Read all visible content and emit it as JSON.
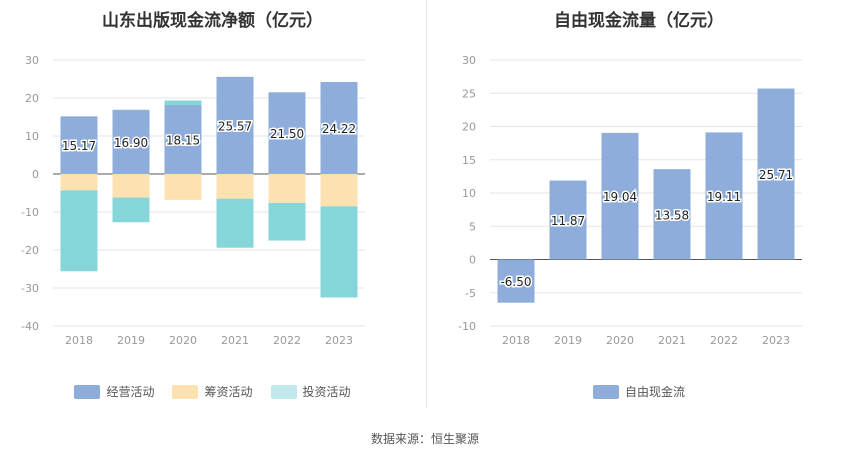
{
  "colors": {
    "operating": "#8eaddb",
    "financing": "#fde1b0",
    "investing": "#85d6d8",
    "fcf": "#8eaddb",
    "grid": "#e6e6e6",
    "axis_text": "#999999"
  },
  "source_text": "数据来源：恒生聚源",
  "chart_data": [
    {
      "type": "bar",
      "stacked": true,
      "title": "山东出版现金流净额（亿元）",
      "categories": [
        "2018",
        "2019",
        "2020",
        "2021",
        "2022",
        "2023"
      ],
      "ylim": [
        -40,
        30
      ],
      "yticks": [
        30,
        20,
        10,
        0,
        -10,
        -20,
        -30,
        -40
      ],
      "series": [
        {
          "name": "经营活动",
          "key": "operating",
          "values": [
            15.17,
            16.9,
            18.15,
            25.57,
            21.5,
            24.22
          ],
          "labels": [
            "15.17",
            "16.90",
            "18.15",
            "25.57",
            "21.50",
            "24.22"
          ]
        },
        {
          "name": "筹资活动",
          "key": "financing",
          "values": [
            -4.3,
            -6.2,
            -6.8,
            -6.5,
            -7.6,
            -8.5
          ]
        },
        {
          "name": "投资活动",
          "key": "investing",
          "values": [
            -21.3,
            -6.5,
            1.2,
            -12.9,
            -9.9,
            -24.0
          ]
        }
      ],
      "legend_position": "bottom"
    },
    {
      "type": "bar",
      "title": "自由现金流量（亿元）",
      "categories": [
        "2018",
        "2019",
        "2020",
        "2021",
        "2022",
        "2023"
      ],
      "ylim": [
        -10,
        30
      ],
      "yticks": [
        30,
        25,
        20,
        15,
        10,
        5,
        0,
        -5,
        -10
      ],
      "series": [
        {
          "name": "自由现金流",
          "key": "fcf",
          "values": [
            -6.5,
            11.87,
            19.04,
            13.58,
            19.11,
            25.71
          ],
          "labels": [
            "-6.50",
            "11.87",
            "19.04",
            "13.58",
            "19.11",
            "25.71"
          ]
        }
      ],
      "legend_position": "bottom"
    }
  ]
}
